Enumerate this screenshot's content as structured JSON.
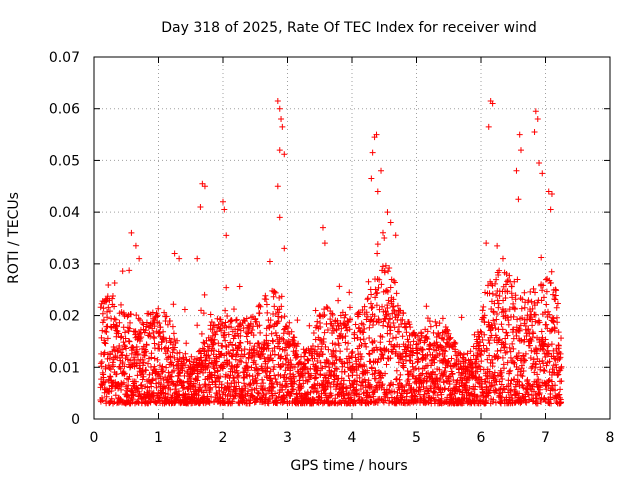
{
  "chart_data": {
    "type": "scatter",
    "title": "Day 318 of 2025, Rate Of TEC Index for receiver wind",
    "xlabel": "GPS time / hours",
    "ylabel": "ROTI / TECUs",
    "xlim": [
      0,
      8
    ],
    "ylim": [
      0,
      0.07
    ],
    "xticks": [
      "0",
      "1",
      "2",
      "3",
      "4",
      "5",
      "6",
      "7",
      "8"
    ],
    "yticks": [
      "0",
      "0.01",
      "0.02",
      "0.03",
      "0.04",
      "0.05",
      "0.06",
      "0.07"
    ],
    "grid": true,
    "marker": "+",
    "color": "#ff0000",
    "data_extent_hours": [
      0.1,
      7.25
    ],
    "series": [
      {
        "name": "ROTI",
        "notable_points": [
          {
            "x": 0.58,
            "y": 0.036
          },
          {
            "x": 0.65,
            "y": 0.0335
          },
          {
            "x": 0.7,
            "y": 0.031
          },
          {
            "x": 1.25,
            "y": 0.032
          },
          {
            "x": 1.32,
            "y": 0.031
          },
          {
            "x": 1.6,
            "y": 0.031
          },
          {
            "x": 1.68,
            "y": 0.0455
          },
          {
            "x": 1.72,
            "y": 0.045
          },
          {
            "x": 1.65,
            "y": 0.041
          },
          {
            "x": 2.0,
            "y": 0.042
          },
          {
            "x": 2.02,
            "y": 0.0405
          },
          {
            "x": 2.05,
            "y": 0.0355
          },
          {
            "x": 2.85,
            "y": 0.0615
          },
          {
            "x": 2.88,
            "y": 0.06
          },
          {
            "x": 2.9,
            "y": 0.058
          },
          {
            "x": 2.92,
            "y": 0.0565
          },
          {
            "x": 2.88,
            "y": 0.052
          },
          {
            "x": 2.95,
            "y": 0.0512
          },
          {
            "x": 2.85,
            "y": 0.045
          },
          {
            "x": 2.88,
            "y": 0.039
          },
          {
            "x": 2.95,
            "y": 0.033
          },
          {
            "x": 3.55,
            "y": 0.037
          },
          {
            "x": 3.58,
            "y": 0.034
          },
          {
            "x": 4.3,
            "y": 0.0465
          },
          {
            "x": 4.35,
            "y": 0.0545
          },
          {
            "x": 4.38,
            "y": 0.055
          },
          {
            "x": 4.32,
            "y": 0.0515
          },
          {
            "x": 4.45,
            "y": 0.048
          },
          {
            "x": 4.4,
            "y": 0.044
          },
          {
            "x": 4.55,
            "y": 0.04
          },
          {
            "x": 4.6,
            "y": 0.038
          },
          {
            "x": 4.5,
            "y": 0.035
          },
          {
            "x": 6.08,
            "y": 0.034
          },
          {
            "x": 6.15,
            "y": 0.0615
          },
          {
            "x": 6.18,
            "y": 0.061
          },
          {
            "x": 6.12,
            "y": 0.0565
          },
          {
            "x": 6.6,
            "y": 0.055
          },
          {
            "x": 6.62,
            "y": 0.052
          },
          {
            "x": 6.55,
            "y": 0.048
          },
          {
            "x": 6.58,
            "y": 0.0425
          },
          {
            "x": 6.85,
            "y": 0.0595
          },
          {
            "x": 6.88,
            "y": 0.058
          },
          {
            "x": 6.83,
            "y": 0.0555
          },
          {
            "x": 6.9,
            "y": 0.0495
          },
          {
            "x": 6.95,
            "y": 0.0475
          },
          {
            "x": 7.05,
            "y": 0.044
          },
          {
            "x": 7.1,
            "y": 0.0435
          },
          {
            "x": 7.08,
            "y": 0.0405
          }
        ],
        "dense_band": {
          "x_range": [
            0.1,
            7.25
          ],
          "typical_y_range": [
            0.003,
            0.02
          ]
        }
      }
    ]
  }
}
